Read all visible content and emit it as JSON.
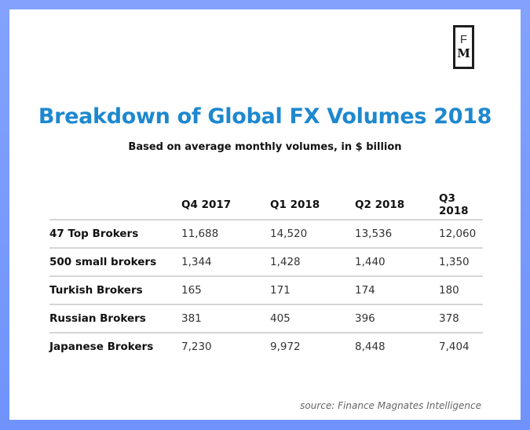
{
  "logo": {
    "top_letter": "F",
    "bottom_letter": "M"
  },
  "header": {
    "title": "Breakdown of Global FX Volumes 2018",
    "subtitle": "Based on average monthly volumes, in $ billion"
  },
  "footer": {
    "source": "source: Finance Magnates Intelligence"
  },
  "colors": {
    "frame": "#7a9cfc",
    "title": "#1e88cf",
    "divider": "#d6d6d6"
  },
  "chart_data": {
    "type": "table",
    "title": "Breakdown of Global FX Volumes 2018",
    "subtitle": "Based on average monthly volumes, in $ billion",
    "unit": "$ billion",
    "columns": [
      "Q4 2017",
      "Q1 2018",
      "Q2 2018",
      "Q3 2018"
    ],
    "rows": [
      {
        "label": "47 Top Brokers",
        "values": [
          "11,688",
          "14,520",
          "13,536",
          "12,060"
        ]
      },
      {
        "label": "500 small brokers",
        "values": [
          "1,344",
          "1,428",
          "1,440",
          "1,350"
        ]
      },
      {
        "label": "Turkish Brokers",
        "values": [
          "165",
          "171",
          "174",
          "180"
        ]
      },
      {
        "label": "Russian Brokers",
        "values": [
          "381",
          "405",
          "396",
          "378"
        ]
      },
      {
        "label": "Japanese Brokers",
        "values": [
          "7,230",
          "9,972",
          "8,448",
          "7,404"
        ]
      }
    ],
    "source": "source: Finance Magnates Intelligence"
  }
}
